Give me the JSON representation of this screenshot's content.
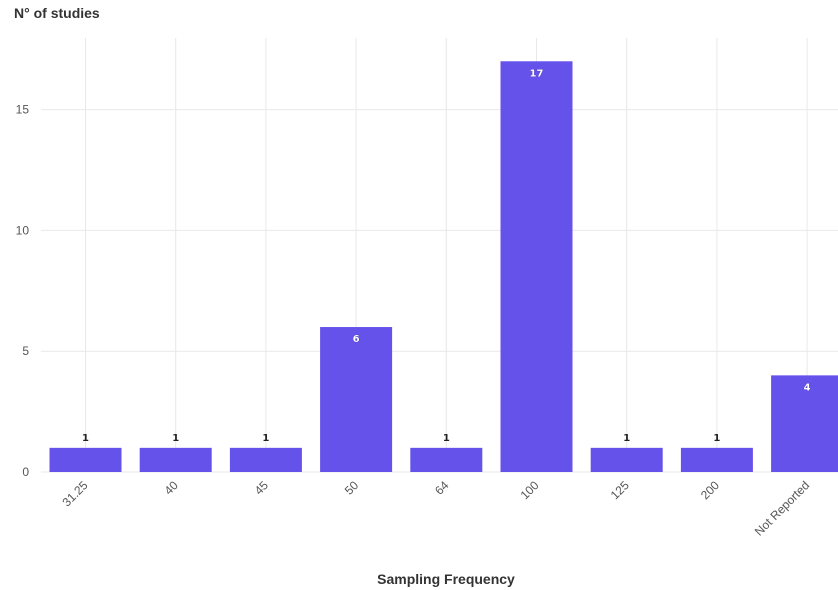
{
  "chart_data": {
    "type": "bar",
    "title": "",
    "ylabel": "N° of studies",
    "xlabel": "Sampling Frequency",
    "categories": [
      "31.25",
      "40",
      "45",
      "50",
      "64",
      "100",
      "125",
      "200",
      "Not Reported"
    ],
    "values": [
      1,
      1,
      1,
      6,
      1,
      17,
      1,
      1,
      4
    ],
    "ylim": [
      0,
      18
    ],
    "yticks": [
      0,
      5,
      10,
      15
    ],
    "grid": true,
    "legend": "none",
    "colors": {
      "bar": "#6552EB",
      "label_dark": "#222222",
      "label_light": "#ffffff"
    }
  }
}
